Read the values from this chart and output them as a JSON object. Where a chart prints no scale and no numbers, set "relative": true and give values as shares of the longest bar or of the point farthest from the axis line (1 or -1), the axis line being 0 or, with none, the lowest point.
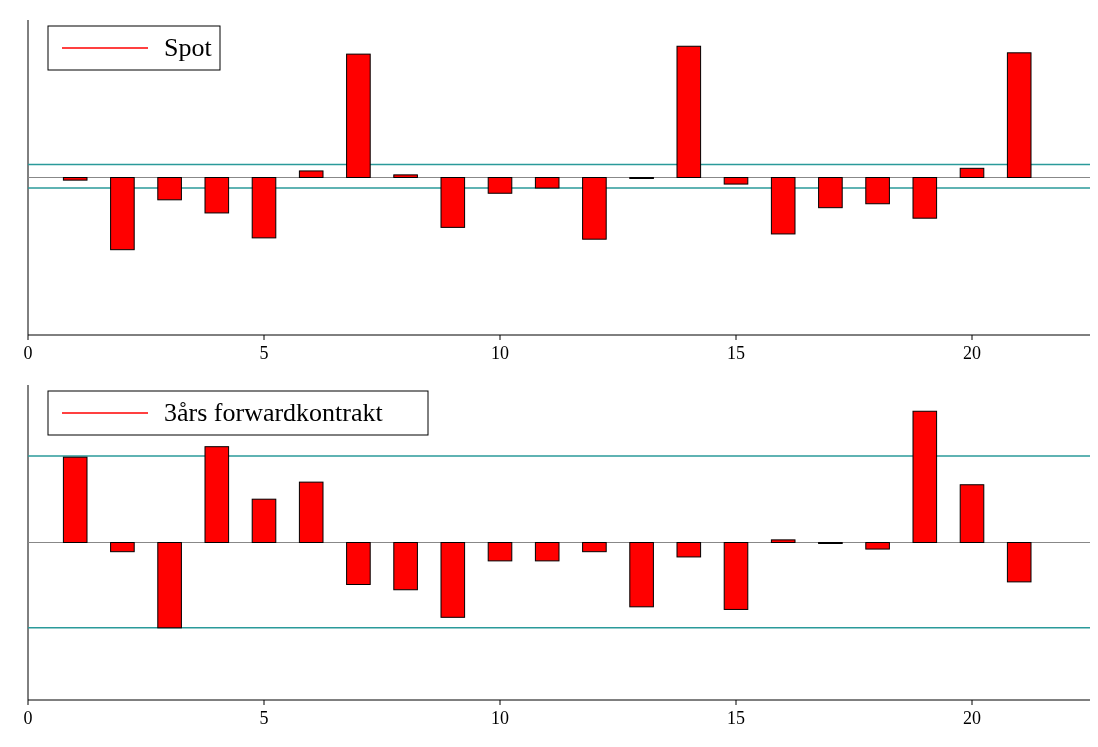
{
  "chart_data": [
    {
      "type": "bar",
      "relative": true,
      "x": [
        1,
        2,
        3,
        4,
        5,
        6,
        7,
        8,
        9,
        10,
        11,
        12,
        13,
        14,
        15,
        16,
        17,
        18,
        19,
        20,
        21
      ],
      "xlim": [
        0,
        22.5
      ],
      "xticks": [
        0,
        5,
        10,
        15,
        20
      ],
      "legend": "top left",
      "series": [
        {
          "name": "Spot",
          "color": "#ff0000",
          "values": [
            -0.02,
            -0.55,
            -0.17,
            -0.27,
            -0.46,
            0.05,
            0.94,
            0.02,
            -0.38,
            -0.12,
            -0.08,
            -0.47,
            0,
            1,
            -0.05,
            -0.43,
            -0.23,
            -0.2,
            -0.31,
            0.07,
            0.95
          ]
        }
      ],
      "ref_lines": [
        {
          "axis": "y",
          "value": 0.1,
          "color": "#2a9a9a"
        },
        {
          "axis": "y",
          "value": -0.08,
          "color": "#2a9a9a"
        }
      ]
    },
    {
      "type": "bar",
      "relative": true,
      "x": [
        1,
        2,
        3,
        4,
        5,
        6,
        7,
        8,
        9,
        10,
        11,
        12,
        13,
        14,
        15,
        16,
        17,
        18,
        19,
        20,
        21
      ],
      "xlim": [
        0,
        22.5
      ],
      "xticks": [
        0,
        5,
        10,
        15,
        20
      ],
      "legend": "top left",
      "series": [
        {
          "name": "3års forwardkontrakt",
          "color": "#ff0000",
          "values": [
            0.65,
            -0.07,
            -0.65,
            0.73,
            0.33,
            0.46,
            -0.32,
            -0.36,
            -0.57,
            -0.14,
            -0.14,
            -0.07,
            -0.49,
            -0.11,
            -0.51,
            0.02,
            0,
            -0.05,
            1,
            0.44,
            -0.3
          ]
        }
      ],
      "ref_lines": [
        {
          "axis": "y",
          "value": 0.66,
          "color": "#2a9a9a"
        },
        {
          "axis": "y",
          "value": -0.65,
          "color": "#2a9a9a"
        }
      ]
    }
  ]
}
